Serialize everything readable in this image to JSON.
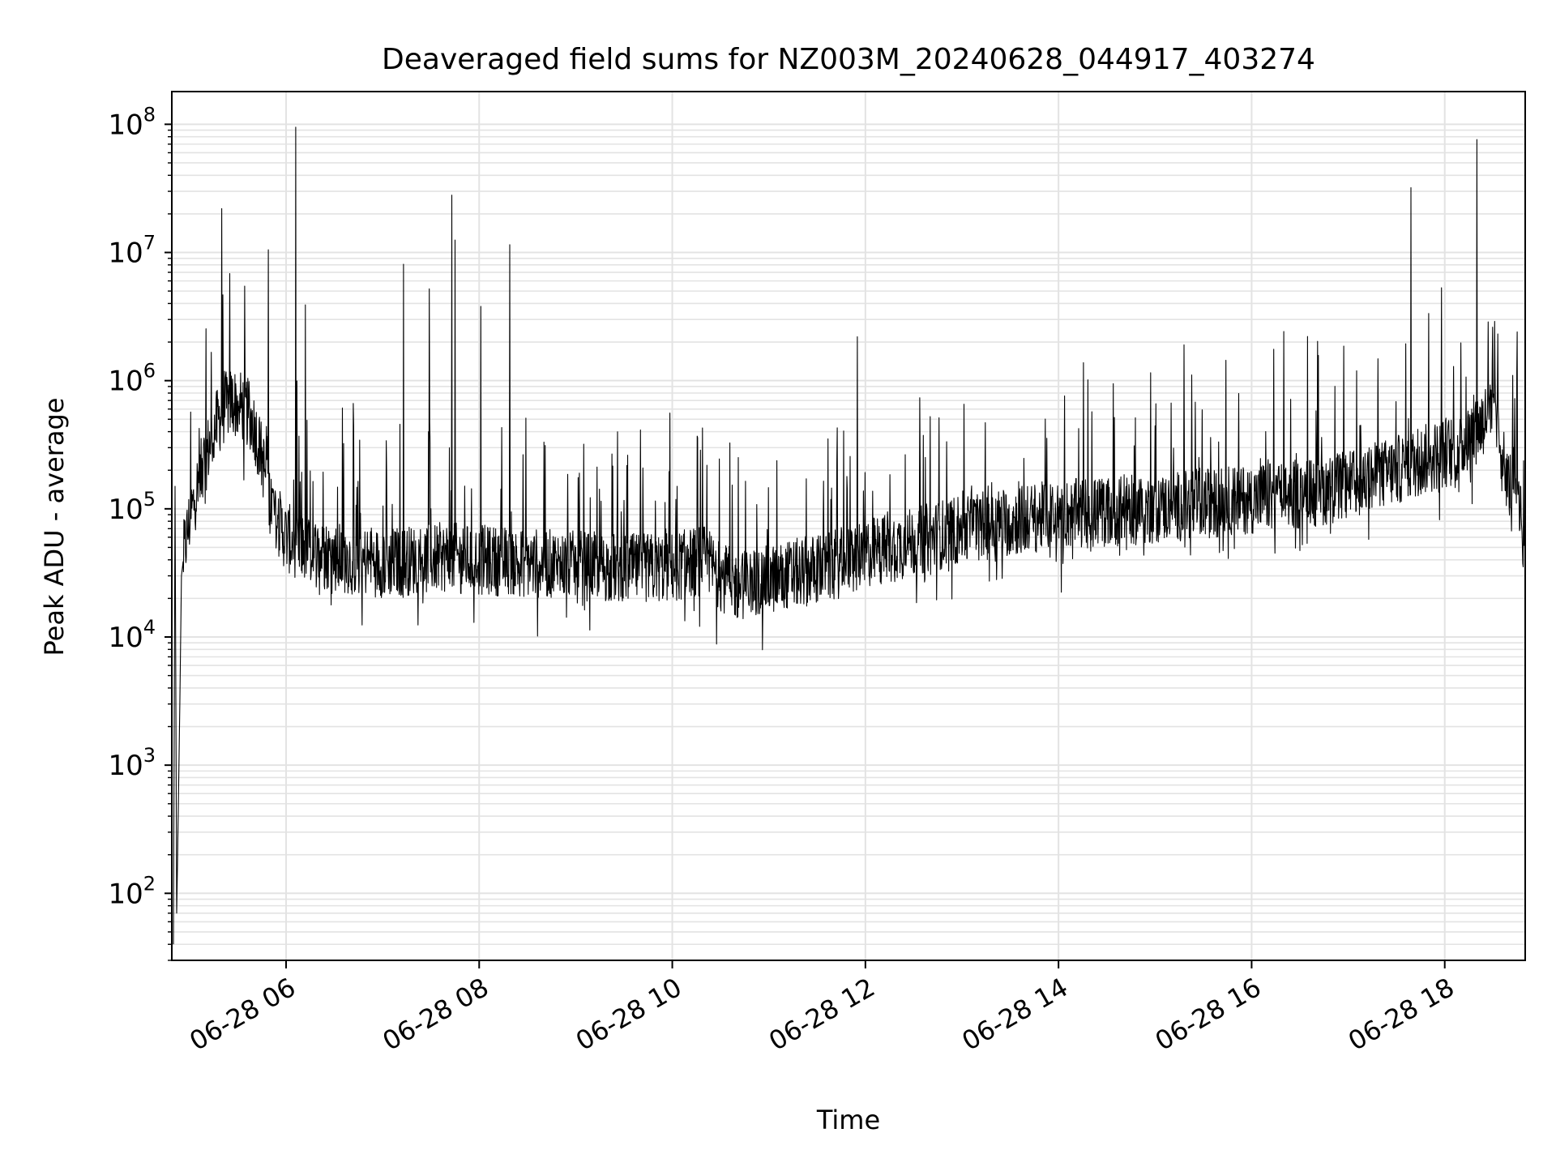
{
  "chart_data": {
    "type": "line",
    "title": "Deaveraged field sums for NZ003M_20240628_044917_403274",
    "xlabel": "Time",
    "ylabel": "Peak ADU - average",
    "y_scale": "log",
    "ylim": [
      30,
      180000000
    ],
    "xlim": [
      "2024-06-28 04:49",
      "2024-06-28 18:50"
    ],
    "grid": true,
    "line_color": "#000000",
    "grid_color": "#e3e3e3",
    "x_ticks": [
      {
        "value": "2024-06-28 06:00",
        "label": "06-28 06"
      },
      {
        "value": "2024-06-28 08:00",
        "label": "06-28 08"
      },
      {
        "value": "2024-06-28 10:00",
        "label": "06-28 10"
      },
      {
        "value": "2024-06-28 12:00",
        "label": "06-28 12"
      },
      {
        "value": "2024-06-28 14:00",
        "label": "06-28 14"
      },
      {
        "value": "2024-06-28 16:00",
        "label": "06-28 16"
      },
      {
        "value": "2024-06-28 18:00",
        "label": "06-28 18"
      }
    ],
    "y_ticks": [
      {
        "value": 100,
        "base": "10",
        "exp": "2"
      },
      {
        "value": 1000,
        "base": "10",
        "exp": "3"
      },
      {
        "value": 10000,
        "base": "10",
        "exp": "4"
      },
      {
        "value": 100000,
        "base": "10",
        "exp": "5"
      },
      {
        "value": 1000000,
        "base": "10",
        "exp": "6"
      },
      {
        "value": 10000000,
        "base": "10",
        "exp": "7"
      },
      {
        "value": 100000000,
        "base": "10",
        "exp": "8"
      }
    ],
    "series": [
      {
        "points": [
          [
            "2024-06-28 04:50",
            40
          ],
          [
            "2024-06-28 04:51",
            150000
          ],
          [
            "2024-06-28 04:52",
            70
          ],
          [
            "2024-06-28 04:53",
            400
          ],
          [
            "2024-06-28 04:54",
            3000
          ],
          [
            "2024-06-28 04:55",
            30000
          ],
          [
            "2024-06-28 04:57",
            50000
          ],
          [
            "2024-06-28 05:00",
            80000
          ],
          [
            "2024-06-28 05:05",
            150000
          ],
          [
            "2024-06-28 05:10",
            250000
          ],
          [
            "2024-06-28 05:15",
            400000
          ],
          [
            "2024-06-28 05:20",
            550000
          ],
          [
            "2024-06-28 05:25",
            700000
          ],
          [
            "2024-06-28 05:30",
            650000
          ],
          [
            "2024-06-28 05:35",
            600000
          ],
          [
            "2024-06-28 05:40",
            450000
          ],
          [
            "2024-06-28 05:45",
            250000
          ],
          [
            "2024-06-28 05:50",
            120000
          ],
          [
            "2024-06-28 05:55",
            80000
          ],
          [
            "2024-06-28 06:00",
            60000
          ],
          [
            "2024-06-28 06:10",
            50000
          ],
          [
            "2024-06-28 06:20",
            45000
          ],
          [
            "2024-06-28 06:40",
            40000
          ],
          [
            "2024-06-28 07:00",
            38000
          ],
          [
            "2024-06-28 07:20",
            40000
          ],
          [
            "2024-06-28 07:40",
            42000
          ],
          [
            "2024-06-28 08:00",
            40000
          ],
          [
            "2024-06-28 08:30",
            38000
          ],
          [
            "2024-06-28 09:00",
            36000
          ],
          [
            "2024-06-28 09:30",
            34000
          ],
          [
            "2024-06-28 10:00",
            35000
          ],
          [
            "2024-06-28 10:20",
            40000
          ],
          [
            "2024-06-28 10:30",
            30000
          ],
          [
            "2024-06-28 10:40",
            25000
          ],
          [
            "2024-06-28 11:00",
            28000
          ],
          [
            "2024-06-28 11:20",
            32000
          ],
          [
            "2024-06-28 11:40",
            36000
          ],
          [
            "2024-06-28 12:00",
            45000
          ],
          [
            "2024-06-28 12:30",
            55000
          ],
          [
            "2024-06-28 13:00",
            70000
          ],
          [
            "2024-06-28 13:30",
            80000
          ],
          [
            "2024-06-28 14:00",
            90000
          ],
          [
            "2024-06-28 14:30",
            95000
          ],
          [
            "2024-06-28 15:00",
            100000
          ],
          [
            "2024-06-28 15:30",
            110000
          ],
          [
            "2024-06-28 16:00",
            120000
          ],
          [
            "2024-06-28 16:30",
            130000
          ],
          [
            "2024-06-28 17:00",
            150000
          ],
          [
            "2024-06-28 17:30",
            200000
          ],
          [
            "2024-06-28 17:50",
            250000
          ],
          [
            "2024-06-28 18:10",
            300000
          ],
          [
            "2024-06-28 18:25",
            500000
          ],
          [
            "2024-06-28 18:30",
            800000
          ],
          [
            "2024-06-28 18:35",
            300000
          ],
          [
            "2024-06-28 18:40",
            150000
          ],
          [
            "2024-06-28 18:45",
            200000
          ],
          [
            "2024-06-28 18:50",
            40000
          ]
        ],
        "spikes": [
          [
            "2024-06-28 05:20",
            22000000
          ],
          [
            "2024-06-28 05:49",
            10500000
          ],
          [
            "2024-06-28 06:06",
            95000000
          ],
          [
            "2024-06-28 06:12",
            3900000
          ],
          [
            "2024-06-28 07:13",
            8100000
          ],
          [
            "2024-06-28 07:29",
            5200000
          ],
          [
            "2024-06-28 07:43",
            28000000
          ],
          [
            "2024-06-28 07:45",
            12500000
          ],
          [
            "2024-06-28 08:01",
            3800000
          ],
          [
            "2024-06-28 08:19",
            11500000
          ],
          [
            "2024-06-28 11:55",
            2200000
          ],
          [
            "2024-06-28 15:18",
            1900000
          ],
          [
            "2024-06-28 17:39",
            32000000
          ],
          [
            "2024-06-28 17:58",
            5300000
          ],
          [
            "2024-06-28 18:20",
            76000000
          ],
          [
            "2024-06-28 18:31",
            2900000
          ]
        ]
      }
    ]
  }
}
